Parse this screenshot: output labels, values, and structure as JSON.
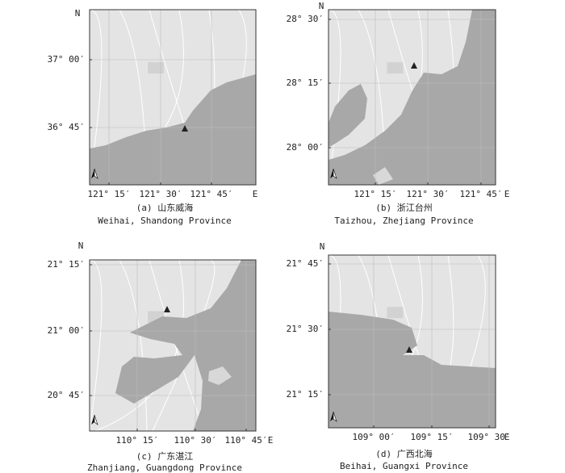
{
  "panels": [
    {
      "label": "(a) 山东威海",
      "caption": "Weihai, Shandong Province",
      "north": "N",
      "east": "E",
      "lat_ticks": [
        "37° 00′",
        "36° 45′"
      ],
      "lon_ticks": [
        "121° 15′",
        "121° 30′",
        "121° 45′"
      ]
    },
    {
      "label": "(b) 浙江台州",
      "caption": "Taizhou, Zhejiang Province",
      "north": "N",
      "east": "E",
      "lat_ticks": [
        "28° 30′",
        "28° 15′",
        "28° 00′"
      ],
      "lon_ticks": [
        "121° 15′",
        "121° 30′",
        "121° 45′"
      ]
    },
    {
      "label": "(c) 广东湛江",
      "caption": "Zhanjiang, Guangdong Province",
      "north": "N",
      "east": "E",
      "lat_ticks": [
        "21° 15′",
        "21° 00′",
        "20° 45′"
      ],
      "lon_ticks": [
        "110° 15′",
        "110° 30′",
        "110° 45′"
      ]
    },
    {
      "label": "(d) 广西北海",
      "caption": "Beihai, Guangxi Province",
      "north": "N",
      "east": "E",
      "lat_ticks": [
        "21° 45′",
        "21° 30′",
        "21° 15′"
      ],
      "lon_ticks": [
        "109° 00′",
        "109° 15′",
        "109° 30′"
      ]
    }
  ]
}
